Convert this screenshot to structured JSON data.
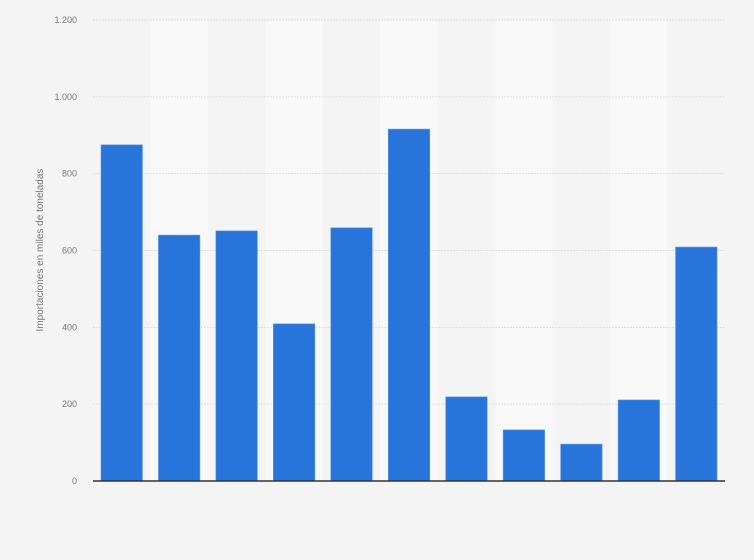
{
  "chart_data": {
    "type": "bar",
    "title": "",
    "xlabel": "",
    "ylabel": "Importaciones en miles de toneladas",
    "categories": [
      "",
      "",
      "",
      "",
      "",
      "",
      "",
      "",
      "",
      "",
      ""
    ],
    "values": [
      875,
      640,
      651,
      409,
      659,
      916,
      219,
      133,
      96,
      211,
      609
    ],
    "ylim": [
      0,
      1200
    ],
    "yticks": [
      0,
      200,
      400,
      600,
      800,
      1000,
      1200
    ],
    "ytick_labels": [
      "0",
      "200",
      "400",
      "600",
      "800",
      "1.000",
      "1.200"
    ],
    "grid": true,
    "legend": "none",
    "colors": {
      "bar": "#2775db",
      "background": "#f4f4f4",
      "band": "#f8f8f8",
      "grid": "#dddddd",
      "axis": "#333333"
    }
  }
}
